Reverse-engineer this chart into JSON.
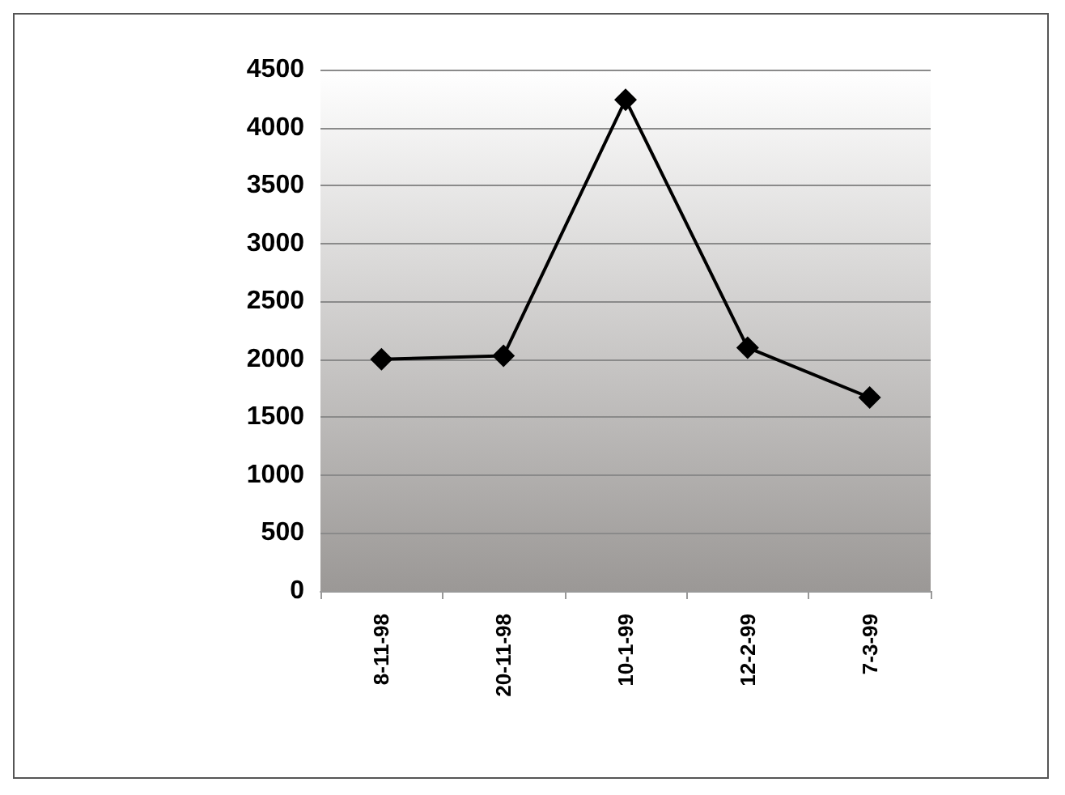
{
  "chart_data": {
    "type": "line",
    "categories": [
      "8-11-98",
      "20-11-98",
      "10-1-99",
      "12-2-99",
      "7-3-99"
    ],
    "series": [
      {
        "color": "#000000",
        "values": [
          2000,
          2030,
          4240,
          2100,
          1670
        ]
      }
    ],
    "ylim": [
      0,
      4500
    ],
    "yticks": [
      0,
      500,
      1000,
      1500,
      2000,
      2500,
      3000,
      3500,
      4000,
      4500
    ],
    "grid": "y",
    "marker": "diamond",
    "line_style": "solid"
  }
}
